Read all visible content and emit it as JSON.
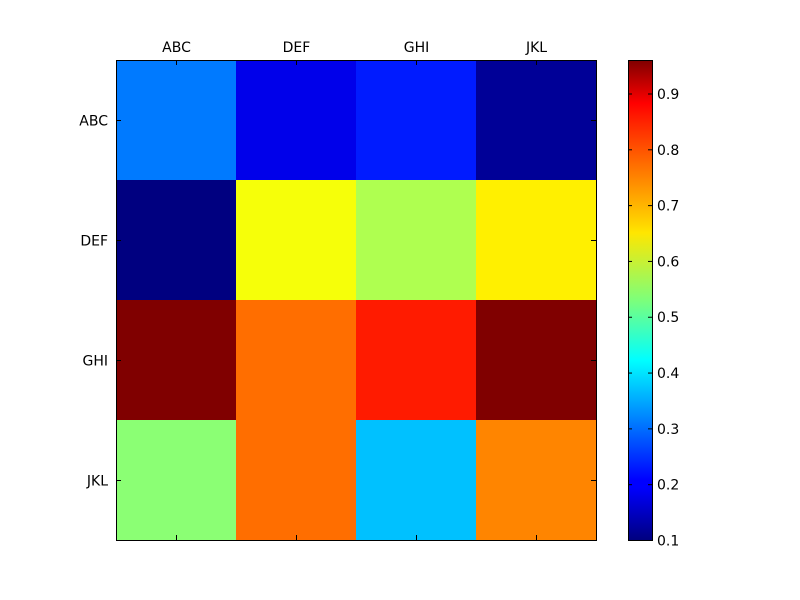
{
  "chart_data": {
    "type": "heatmap",
    "x_categories": [
      "ABC",
      "DEF",
      "GHI",
      "JKL"
    ],
    "y_categories": [
      "ABC",
      "DEF",
      "GHI",
      "JKL"
    ],
    "x_axis_position": "top",
    "values": [
      [
        0.31,
        0.19,
        0.23,
        0.12
      ],
      [
        0.1,
        0.63,
        0.57,
        0.65
      ],
      [
        0.96,
        0.76,
        0.83,
        0.96
      ],
      [
        0.54,
        0.76,
        0.37,
        0.74
      ]
    ],
    "colormap": "jet",
    "vmin": 0.1,
    "vmax": 0.96,
    "colorbar": {
      "ticks": [
        0.1,
        0.2,
        0.3,
        0.4,
        0.5,
        0.6,
        0.7,
        0.8,
        0.9
      ],
      "tick_labels": [
        "0.1",
        "0.2",
        "0.3",
        "0.4",
        "0.5",
        "0.6",
        "0.7",
        "0.8",
        "0.9"
      ],
      "placement": "right"
    },
    "title": "",
    "xlabel": "",
    "ylabel": "",
    "grid": false
  }
}
